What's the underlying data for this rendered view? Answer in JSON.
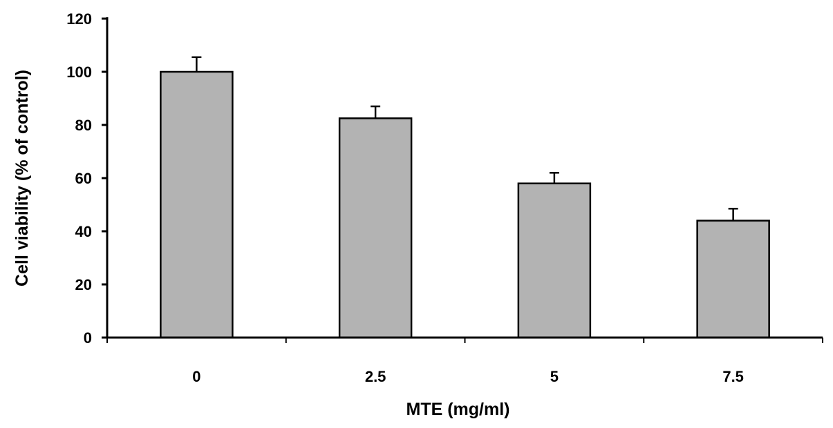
{
  "chart_data": {
    "type": "bar",
    "title": "",
    "xlabel": "MTE (mg/ml)",
    "ylabel": "Cell viability (% of control)",
    "categories": [
      "0",
      "2.5",
      "5",
      "7.5"
    ],
    "values": [
      100,
      82.5,
      58,
      44
    ],
    "error_upper": [
      5.5,
      4.5,
      4,
      4.5
    ],
    "ylim": [
      0,
      120
    ],
    "yticks": [
      0,
      20,
      40,
      60,
      80,
      100,
      120
    ],
    "grid": false,
    "legend": "none",
    "bar_color": "#b3b3b3",
    "edge_color": "#000000"
  }
}
